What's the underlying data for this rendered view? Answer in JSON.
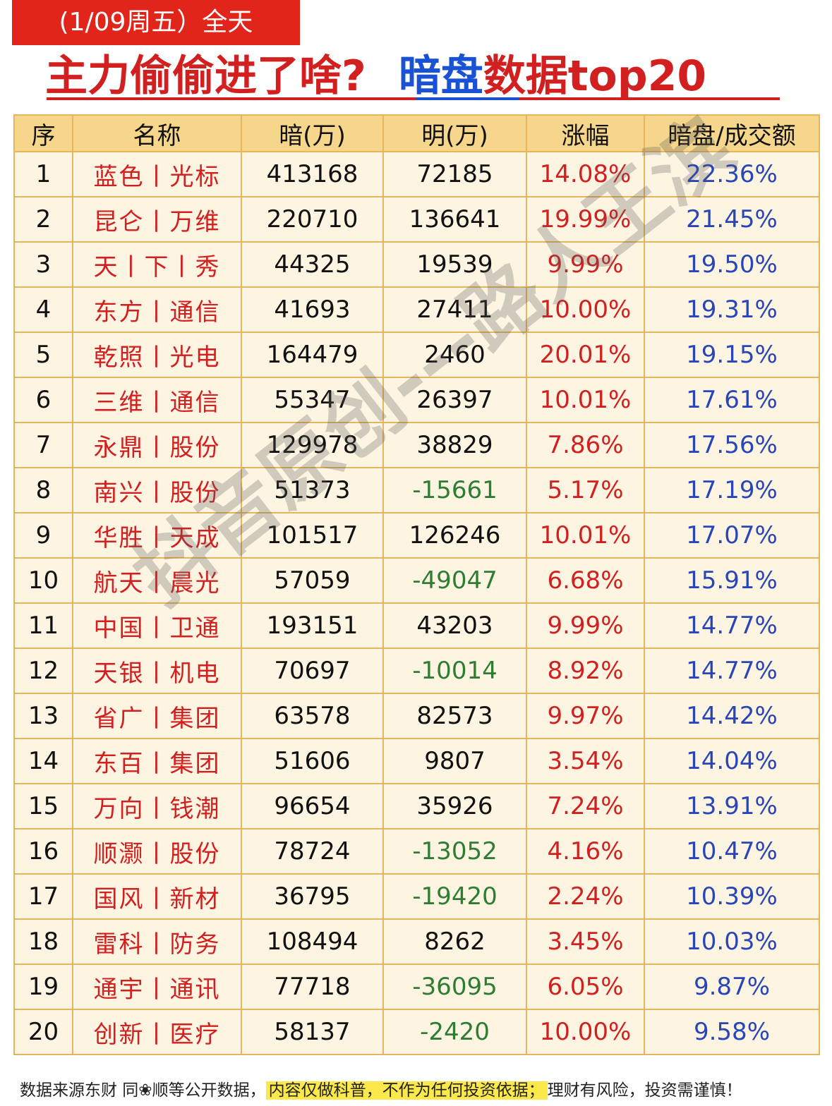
{
  "date_tag": "(1/09周五）全天",
  "headline": {
    "question": "主力偷偷进了啥?",
    "an": "暗盘",
    "rest": "数据top20"
  },
  "table": {
    "headers": [
      "序",
      "名称",
      "暗(万)",
      "明(万)",
      "涨幅",
      "暗盘/成交额"
    ],
    "rows": [
      {
        "idx": "1",
        "name": "蓝色丨光标",
        "an": "413168",
        "ming": "72185",
        "chg": "14.08%",
        "ratio": "22.36%",
        "neg": false
      },
      {
        "idx": "2",
        "name": "昆仑丨万维",
        "an": "220710",
        "ming": "136641",
        "chg": "19.99%",
        "ratio": "21.45%",
        "neg": false
      },
      {
        "idx": "3",
        "name": "天丨下丨秀",
        "an": "44325",
        "ming": "19539",
        "chg": "9.99%",
        "ratio": "19.50%",
        "neg": false
      },
      {
        "idx": "4",
        "name": "东方丨通信",
        "an": "41693",
        "ming": "27411",
        "chg": "10.00%",
        "ratio": "19.31%",
        "neg": false
      },
      {
        "idx": "5",
        "name": "乾照丨光电",
        "an": "164479",
        "ming": "2460",
        "chg": "20.01%",
        "ratio": "19.15%",
        "neg": false
      },
      {
        "idx": "6",
        "name": "三维丨通信",
        "an": "55347",
        "ming": "26397",
        "chg": "10.01%",
        "ratio": "17.61%",
        "neg": false
      },
      {
        "idx": "7",
        "name": "永鼎丨股份",
        "an": "129978",
        "ming": "38829",
        "chg": "7.86%",
        "ratio": "17.56%",
        "neg": false
      },
      {
        "idx": "8",
        "name": "南兴丨股份",
        "an": "51373",
        "ming": "-15661",
        "chg": "5.17%",
        "ratio": "17.19%",
        "neg": true
      },
      {
        "idx": "9",
        "name": "华胜丨天成",
        "an": "101517",
        "ming": "126246",
        "chg": "10.01%",
        "ratio": "17.07%",
        "neg": false
      },
      {
        "idx": "10",
        "name": "航天丨晨光",
        "an": "57059",
        "ming": "-49047",
        "chg": "6.68%",
        "ratio": "15.91%",
        "neg": true
      },
      {
        "idx": "11",
        "name": "中国丨卫通",
        "an": "193151",
        "ming": "43203",
        "chg": "9.99%",
        "ratio": "14.77%",
        "neg": false
      },
      {
        "idx": "12",
        "name": "天银丨机电",
        "an": "70697",
        "ming": "-10014",
        "chg": "8.92%",
        "ratio": "14.77%",
        "neg": true
      },
      {
        "idx": "13",
        "name": "省广丨集团",
        "an": "63578",
        "ming": "82573",
        "chg": "9.97%",
        "ratio": "14.42%",
        "neg": false
      },
      {
        "idx": "14",
        "name": "东百丨集团",
        "an": "51606",
        "ming": "9807",
        "chg": "3.54%",
        "ratio": "14.04%",
        "neg": false
      },
      {
        "idx": "15",
        "name": "万向丨钱潮",
        "an": "96654",
        "ming": "35926",
        "chg": "7.24%",
        "ratio": "13.91%",
        "neg": false
      },
      {
        "idx": "16",
        "name": "顺灏丨股份",
        "an": "78724",
        "ming": "-13052",
        "chg": "4.16%",
        "ratio": "10.47%",
        "neg": true
      },
      {
        "idx": "17",
        "name": "国风丨新材",
        "an": "36795",
        "ming": "-19420",
        "chg": "2.24%",
        "ratio": "10.39%",
        "neg": true
      },
      {
        "idx": "18",
        "name": "雷科丨防务",
        "an": "108494",
        "ming": "8262",
        "chg": "3.45%",
        "ratio": "10.03%",
        "neg": false
      },
      {
        "idx": "19",
        "name": "通宇丨通讯",
        "an": "77718",
        "ming": "-36095",
        "chg": "6.05%",
        "ratio": "9.87%",
        "neg": true
      },
      {
        "idx": "20",
        "name": "创新丨医疗",
        "an": "58137",
        "ming": "-2420",
        "chg": "10.00%",
        "ratio": "9.58%",
        "neg": true
      }
    ]
  },
  "watermark": "抖音原创---路人王滨",
  "footer": {
    "source": "数据来源东财 同❀顺等公开数据，",
    "disclaimer": "内容仅做科普，不作为任何投资依据；",
    "risk": "理财有风险，投资需谨慎！"
  }
}
